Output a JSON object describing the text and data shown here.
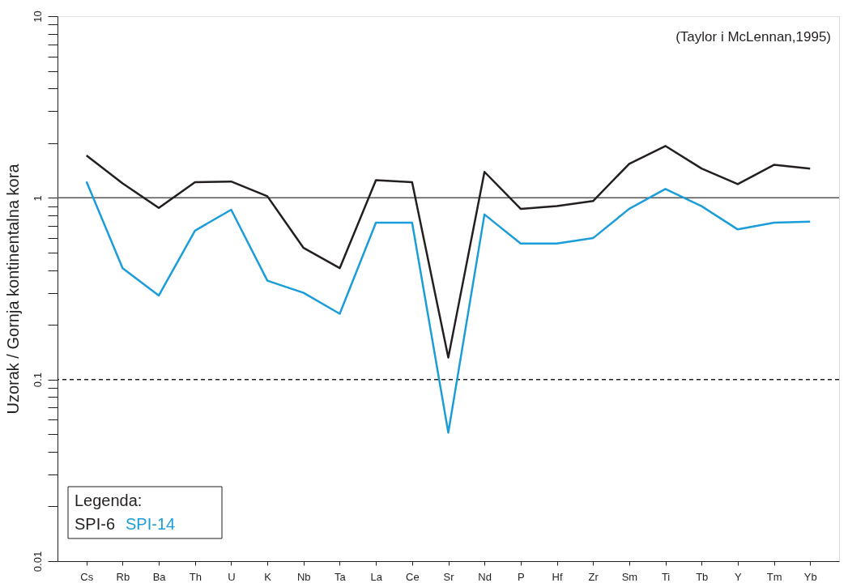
{
  "chart_data": {
    "type": "line",
    "ylabel": "Uzorak / Gornja kontinentalna kora",
    "legend_title": "Legenda:",
    "legend": "bottom left",
    "log": "y",
    "grid": false,
    "marker": "none",
    "line_style": "solid",
    "categories": [
      "Cs",
      "Rb",
      "Ba",
      "Th",
      "U",
      "K",
      "Nb",
      "Ta",
      "La",
      "Ce",
      "Sr",
      "Nd",
      "P",
      "Hf",
      "Zr",
      "Sm",
      "Ti",
      "Tb",
      "Y",
      "Tm",
      "Yb"
    ],
    "series": [
      {
        "name": "SPI-6",
        "color": "#231f20",
        "values": [
          1.71,
          1.2,
          0.88,
          1.22,
          1.23,
          1.02,
          0.53,
          0.41,
          1.25,
          1.22,
          0.132,
          1.39,
          0.87,
          0.9,
          0.96,
          1.54,
          1.93,
          1.45,
          1.19,
          1.52,
          1.45
        ]
      },
      {
        "name": "SPI-14",
        "color": "#1b9dd9",
        "values": [
          1.23,
          0.41,
          0.29,
          0.66,
          0.86,
          0.35,
          0.3,
          0.23,
          0.73,
          0.73,
          0.051,
          0.81,
          0.56,
          0.56,
          0.6,
          0.87,
          1.12,
          0.9,
          0.67,
          0.73,
          0.74
        ]
      }
    ],
    "ylim": [
      0.01,
      10
    ],
    "yticks": [
      0.01,
      {
        "value": 0.02,
        "label": null
      },
      {
        "value": 0.03,
        "label": null
      },
      {
        "value": 0.04,
        "label": null
      },
      {
        "value": 0.05,
        "label": null
      },
      {
        "value": 0.06,
        "label": null
      },
      {
        "value": 0.07,
        "label": null
      },
      {
        "value": 0.08,
        "label": null
      },
      {
        "value": 0.09,
        "label": null
      },
      0.1,
      {
        "value": 0.2,
        "label": null
      },
      {
        "value": 0.3,
        "label": null
      },
      {
        "value": 0.4,
        "label": null
      },
      {
        "value": 0.5,
        "label": null
      },
      {
        "value": 0.6,
        "label": null
      },
      {
        "value": 0.7,
        "label": null
      },
      {
        "value": 0.8,
        "label": null
      },
      {
        "value": 0.9,
        "label": null
      },
      1,
      {
        "value": 2,
        "label": null
      },
      {
        "value": 3,
        "label": null
      },
      {
        "value": 4,
        "label": null
      },
      {
        "value": 5,
        "label": null
      },
      {
        "value": 6,
        "label": null
      },
      {
        "value": 7,
        "label": null
      },
      {
        "value": 8,
        "label": null
      },
      {
        "value": 9,
        "label": null
      },
      10
    ],
    "ref_lines": [
      {
        "axis": "y",
        "value": 1,
        "color": "#555555",
        "line_style": "solid"
      },
      {
        "axis": "y",
        "value": 0.1,
        "color": "#231f20",
        "line_style": "dashed"
      }
    ],
    "annotations": [
      "(Taylor i McLennan,1995)"
    ]
  }
}
